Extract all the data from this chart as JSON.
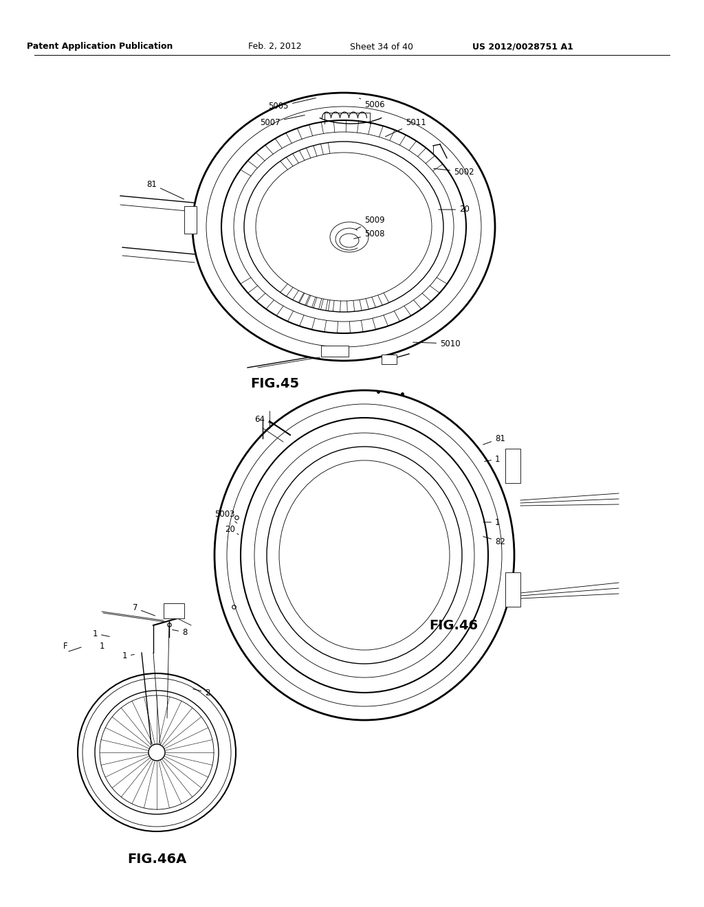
{
  "page_width": 10.24,
  "page_height": 13.2,
  "background_color": "#ffffff",
  "header_text": "Patent Application Publication",
  "header_date": "Feb. 2, 2012",
  "header_sheet": "Sheet 34 of 40",
  "header_patent": "US 2012/0028751 A1",
  "line_color": "#000000",
  "fig45_label": "FIG.45",
  "fig46_label": "FIG.46",
  "fig46a_label": "FIG.46A"
}
